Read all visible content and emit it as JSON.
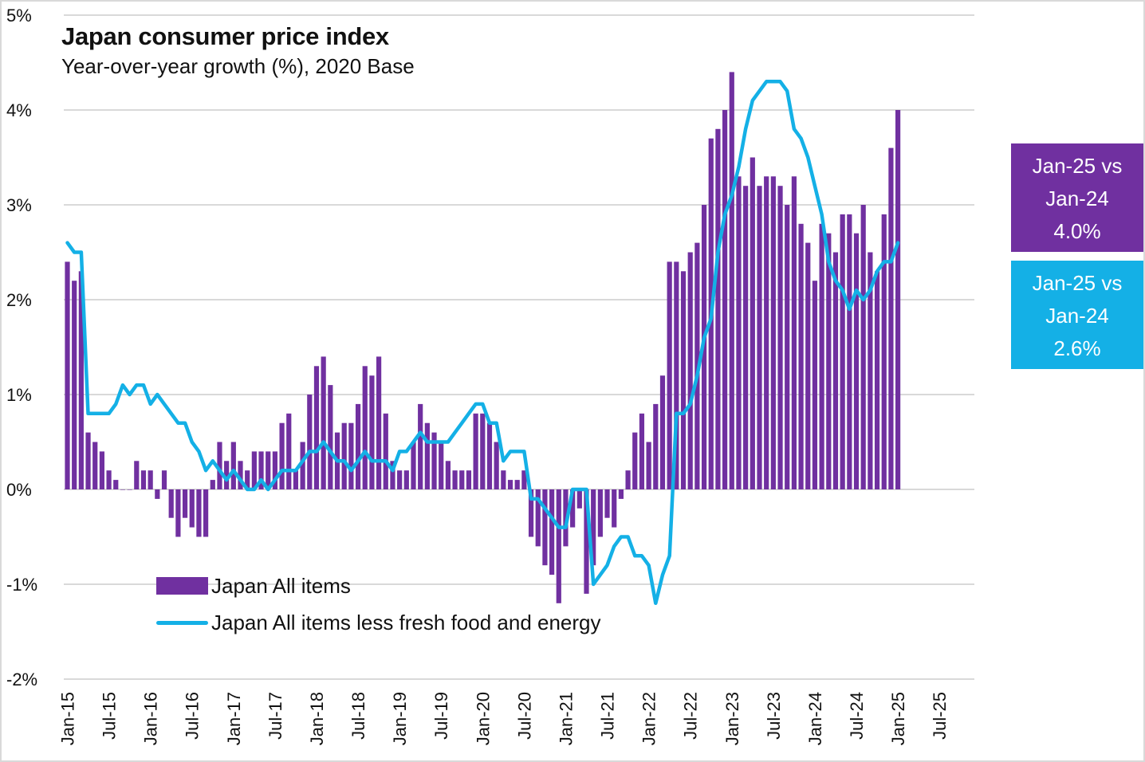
{
  "chart_data": {
    "type": "bar",
    "title": "Japan consumer price index",
    "subtitle": "Year-over-year growth (%), 2020 Base",
    "xlabel": "",
    "ylabel": "",
    "ylim": [
      -2,
      5
    ],
    "y_ticks": [
      5,
      4,
      3,
      2,
      1,
      0,
      -1,
      -2
    ],
    "y_tick_labels": [
      "5%",
      "4%",
      "3%",
      "2%",
      "1%",
      "0%",
      "-1%",
      "-2%"
    ],
    "x_start": "Jan-15",
    "x_tick_labels": [
      "Jan-15",
      "Jul-15",
      "Jan-16",
      "Jul-16",
      "Jan-17",
      "Jul-17",
      "Jan-18",
      "Jul-18",
      "Jan-19",
      "Jul-19",
      "Jan-20",
      "Jul-20",
      "Jan-21",
      "Jul-21",
      "Jan-22",
      "Jul-22",
      "Jan-23",
      "Jul-23",
      "Jan-24",
      "Jul-24",
      "Jan-25",
      "Jul-25"
    ],
    "grid": true,
    "legend_position": "bottom-left",
    "series": [
      {
        "name": "Japan All items",
        "type": "bar",
        "color": "#7030a0",
        "values": [
          2.4,
          2.2,
          2.3,
          0.6,
          0.5,
          0.4,
          0.2,
          0.1,
          0.0,
          0.0,
          0.3,
          0.2,
          0.2,
          -0.1,
          0.2,
          -0.3,
          -0.5,
          -0.3,
          -0.4,
          -0.5,
          -0.5,
          0.1,
          0.5,
          0.3,
          0.5,
          0.3,
          0.2,
          0.4,
          0.4,
          0.4,
          0.4,
          0.7,
          0.8,
          0.2,
          0.5,
          1.0,
          1.3,
          1.4,
          1.1,
          0.6,
          0.7,
          0.7,
          0.9,
          1.3,
          1.2,
          1.4,
          0.8,
          0.3,
          0.2,
          0.2,
          0.5,
          0.9,
          0.7,
          0.6,
          0.5,
          0.3,
          0.2,
          0.2,
          0.2,
          0.8,
          0.8,
          0.7,
          0.5,
          0.2,
          0.1,
          0.1,
          0.2,
          -0.5,
          -0.6,
          -0.8,
          -0.9,
          -1.2,
          -0.6,
          -0.4,
          -0.2,
          -1.1,
          -0.8,
          -0.5,
          -0.3,
          -0.4,
          -0.1,
          0.2,
          0.6,
          0.8,
          0.5,
          0.9,
          1.2,
          2.4,
          2.4,
          2.3,
          2.5,
          2.6,
          3.0,
          3.7,
          3.8,
          4.0,
          4.4,
          3.3,
          3.2,
          3.5,
          3.2,
          3.3,
          3.3,
          3.2,
          3.0,
          3.3,
          2.8,
          2.6,
          2.2,
          2.8,
          2.7,
          2.5,
          2.9,
          2.9,
          2.7,
          3.0,
          2.5,
          2.3,
          2.9,
          3.6,
          4.0
        ],
        "display_value": "4.0%"
      },
      {
        "name": "Japan All items less fresh food and energy",
        "type": "line",
        "color": "#14b0e6",
        "values": [
          2.6,
          2.5,
          2.5,
          0.8,
          0.8,
          0.8,
          0.8,
          0.9,
          1.1,
          1.0,
          1.1,
          1.1,
          0.9,
          1.0,
          0.9,
          0.8,
          0.7,
          0.7,
          0.5,
          0.4,
          0.2,
          0.3,
          0.2,
          0.1,
          0.2,
          0.1,
          0.0,
          0.0,
          0.1,
          0.0,
          0.1,
          0.2,
          0.2,
          0.2,
          0.3,
          0.4,
          0.4,
          0.5,
          0.4,
          0.3,
          0.3,
          0.2,
          0.3,
          0.4,
          0.3,
          0.3,
          0.3,
          0.2,
          0.4,
          0.4,
          0.5,
          0.6,
          0.5,
          0.5,
          0.5,
          0.5,
          0.6,
          0.7,
          0.8,
          0.9,
          0.9,
          0.7,
          0.7,
          0.3,
          0.4,
          0.4,
          0.4,
          -0.1,
          -0.1,
          -0.2,
          -0.3,
          -0.4,
          -0.4,
          0.0,
          0.0,
          0.0,
          -1.0,
          -0.9,
          -0.8,
          -0.6,
          -0.5,
          -0.5,
          -0.7,
          -0.7,
          -0.8,
          -1.2,
          -0.9,
          -0.7,
          0.8,
          0.8,
          0.9,
          1.2,
          1.6,
          1.8,
          2.5,
          2.9,
          3.1,
          3.4,
          3.8,
          4.1,
          4.2,
          4.3,
          4.3,
          4.3,
          4.2,
          3.8,
          3.7,
          3.5,
          3.2,
          2.9,
          2.4,
          2.2,
          2.1,
          1.9,
          2.1,
          2.0,
          2.1,
          2.3,
          2.4,
          2.4,
          2.6
        ],
        "display_value": "2.6%"
      }
    ]
  },
  "legend": {
    "bar_label": "Japan All items",
    "line_label": "Japan All items less fresh food and energy"
  },
  "callouts": [
    {
      "line1": "Jan-25 vs",
      "line2": "Jan-24",
      "value": "4.0%",
      "color": "#7030a0"
    },
    {
      "line1": "Jan-25 vs",
      "line2": "Jan-24",
      "value": "2.6%",
      "color": "#14b0e6"
    }
  ],
  "colors": {
    "gridline": "#d9d9d9",
    "bar": "#7030a0",
    "line": "#14b0e6"
  }
}
